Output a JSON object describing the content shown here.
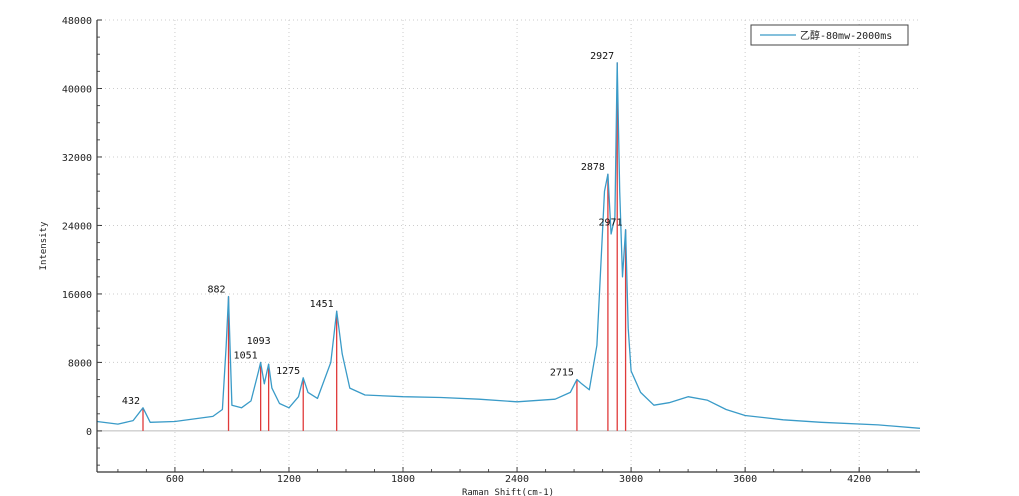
{
  "chart_data": {
    "type": "line",
    "title": "",
    "xlabel": "Raman Shift(cm-1)",
    "ylabel": "Intensity",
    "xlim": [
      190,
      4520
    ],
    "ylim": [
      -4800,
      48000
    ],
    "xticks": [
      600,
      1200,
      1800,
      2400,
      3000,
      3600,
      4200
    ],
    "yticks": [
      0,
      8000,
      16000,
      24000,
      32000,
      40000,
      48000
    ],
    "grid": true,
    "legend_position": "top-right",
    "series": [
      {
        "name": "乙醇-80mw-2000ms",
        "color": "#3a9bc8",
        "points": [
          [
            190,
            1100
          ],
          [
            300,
            800
          ],
          [
            380,
            1200
          ],
          [
            432,
            2700
          ],
          [
            470,
            1000
          ],
          [
            600,
            1100
          ],
          [
            800,
            1700
          ],
          [
            850,
            2500
          ],
          [
            870,
            10000
          ],
          [
            882,
            15700
          ],
          [
            890,
            10000
          ],
          [
            900,
            3000
          ],
          [
            950,
            2700
          ],
          [
            1000,
            3500
          ],
          [
            1040,
            7000
          ],
          [
            1051,
            8000
          ],
          [
            1070,
            5500
          ],
          [
            1093,
            7800
          ],
          [
            1110,
            5000
          ],
          [
            1150,
            3200
          ],
          [
            1200,
            2700
          ],
          [
            1250,
            4000
          ],
          [
            1275,
            6200
          ],
          [
            1300,
            4500
          ],
          [
            1350,
            3800
          ],
          [
            1420,
            8000
          ],
          [
            1451,
            14000
          ],
          [
            1480,
            9000
          ],
          [
            1520,
            5000
          ],
          [
            1600,
            4200
          ],
          [
            1800,
            4000
          ],
          [
            2000,
            3900
          ],
          [
            2200,
            3700
          ],
          [
            2400,
            3400
          ],
          [
            2600,
            3700
          ],
          [
            2680,
            4500
          ],
          [
            2715,
            6000
          ],
          [
            2740,
            5500
          ],
          [
            2780,
            4800
          ],
          [
            2820,
            10000
          ],
          [
            2860,
            28000
          ],
          [
            2878,
            30000
          ],
          [
            2895,
            23000
          ],
          [
            2915,
            25000
          ],
          [
            2927,
            43000
          ],
          [
            2940,
            28000
          ],
          [
            2955,
            18000
          ],
          [
            2971,
            23500
          ],
          [
            2985,
            12000
          ],
          [
            3000,
            7000
          ],
          [
            3050,
            4500
          ],
          [
            3120,
            3000
          ],
          [
            3200,
            3300
          ],
          [
            3300,
            4000
          ],
          [
            3400,
            3600
          ],
          [
            3500,
            2500
          ],
          [
            3600,
            1800
          ],
          [
            3800,
            1300
          ],
          [
            4000,
            1000
          ],
          [
            4300,
            700
          ],
          [
            4520,
            300
          ]
        ]
      }
    ],
    "peaks": [
      {
        "label": "432",
        "x": 432,
        "y": 2700
      },
      {
        "label": "882",
        "x": 882,
        "y": 15700
      },
      {
        "label": "1051",
        "x": 1051,
        "y": 8000
      },
      {
        "label": "1093",
        "x": 1093,
        "y": 7800
      },
      {
        "label": "1275",
        "x": 1275,
        "y": 6200
      },
      {
        "label": "1451",
        "x": 1451,
        "y": 14000
      },
      {
        "label": "2715",
        "x": 2715,
        "y": 6000
      },
      {
        "label": "2878",
        "x": 2878,
        "y": 30000
      },
      {
        "label": "2927",
        "x": 2927,
        "y": 43000
      },
      {
        "label": "2971",
        "x": 2971,
        "y": 23500
      }
    ],
    "peak_marker_color": "#e03a3a"
  }
}
